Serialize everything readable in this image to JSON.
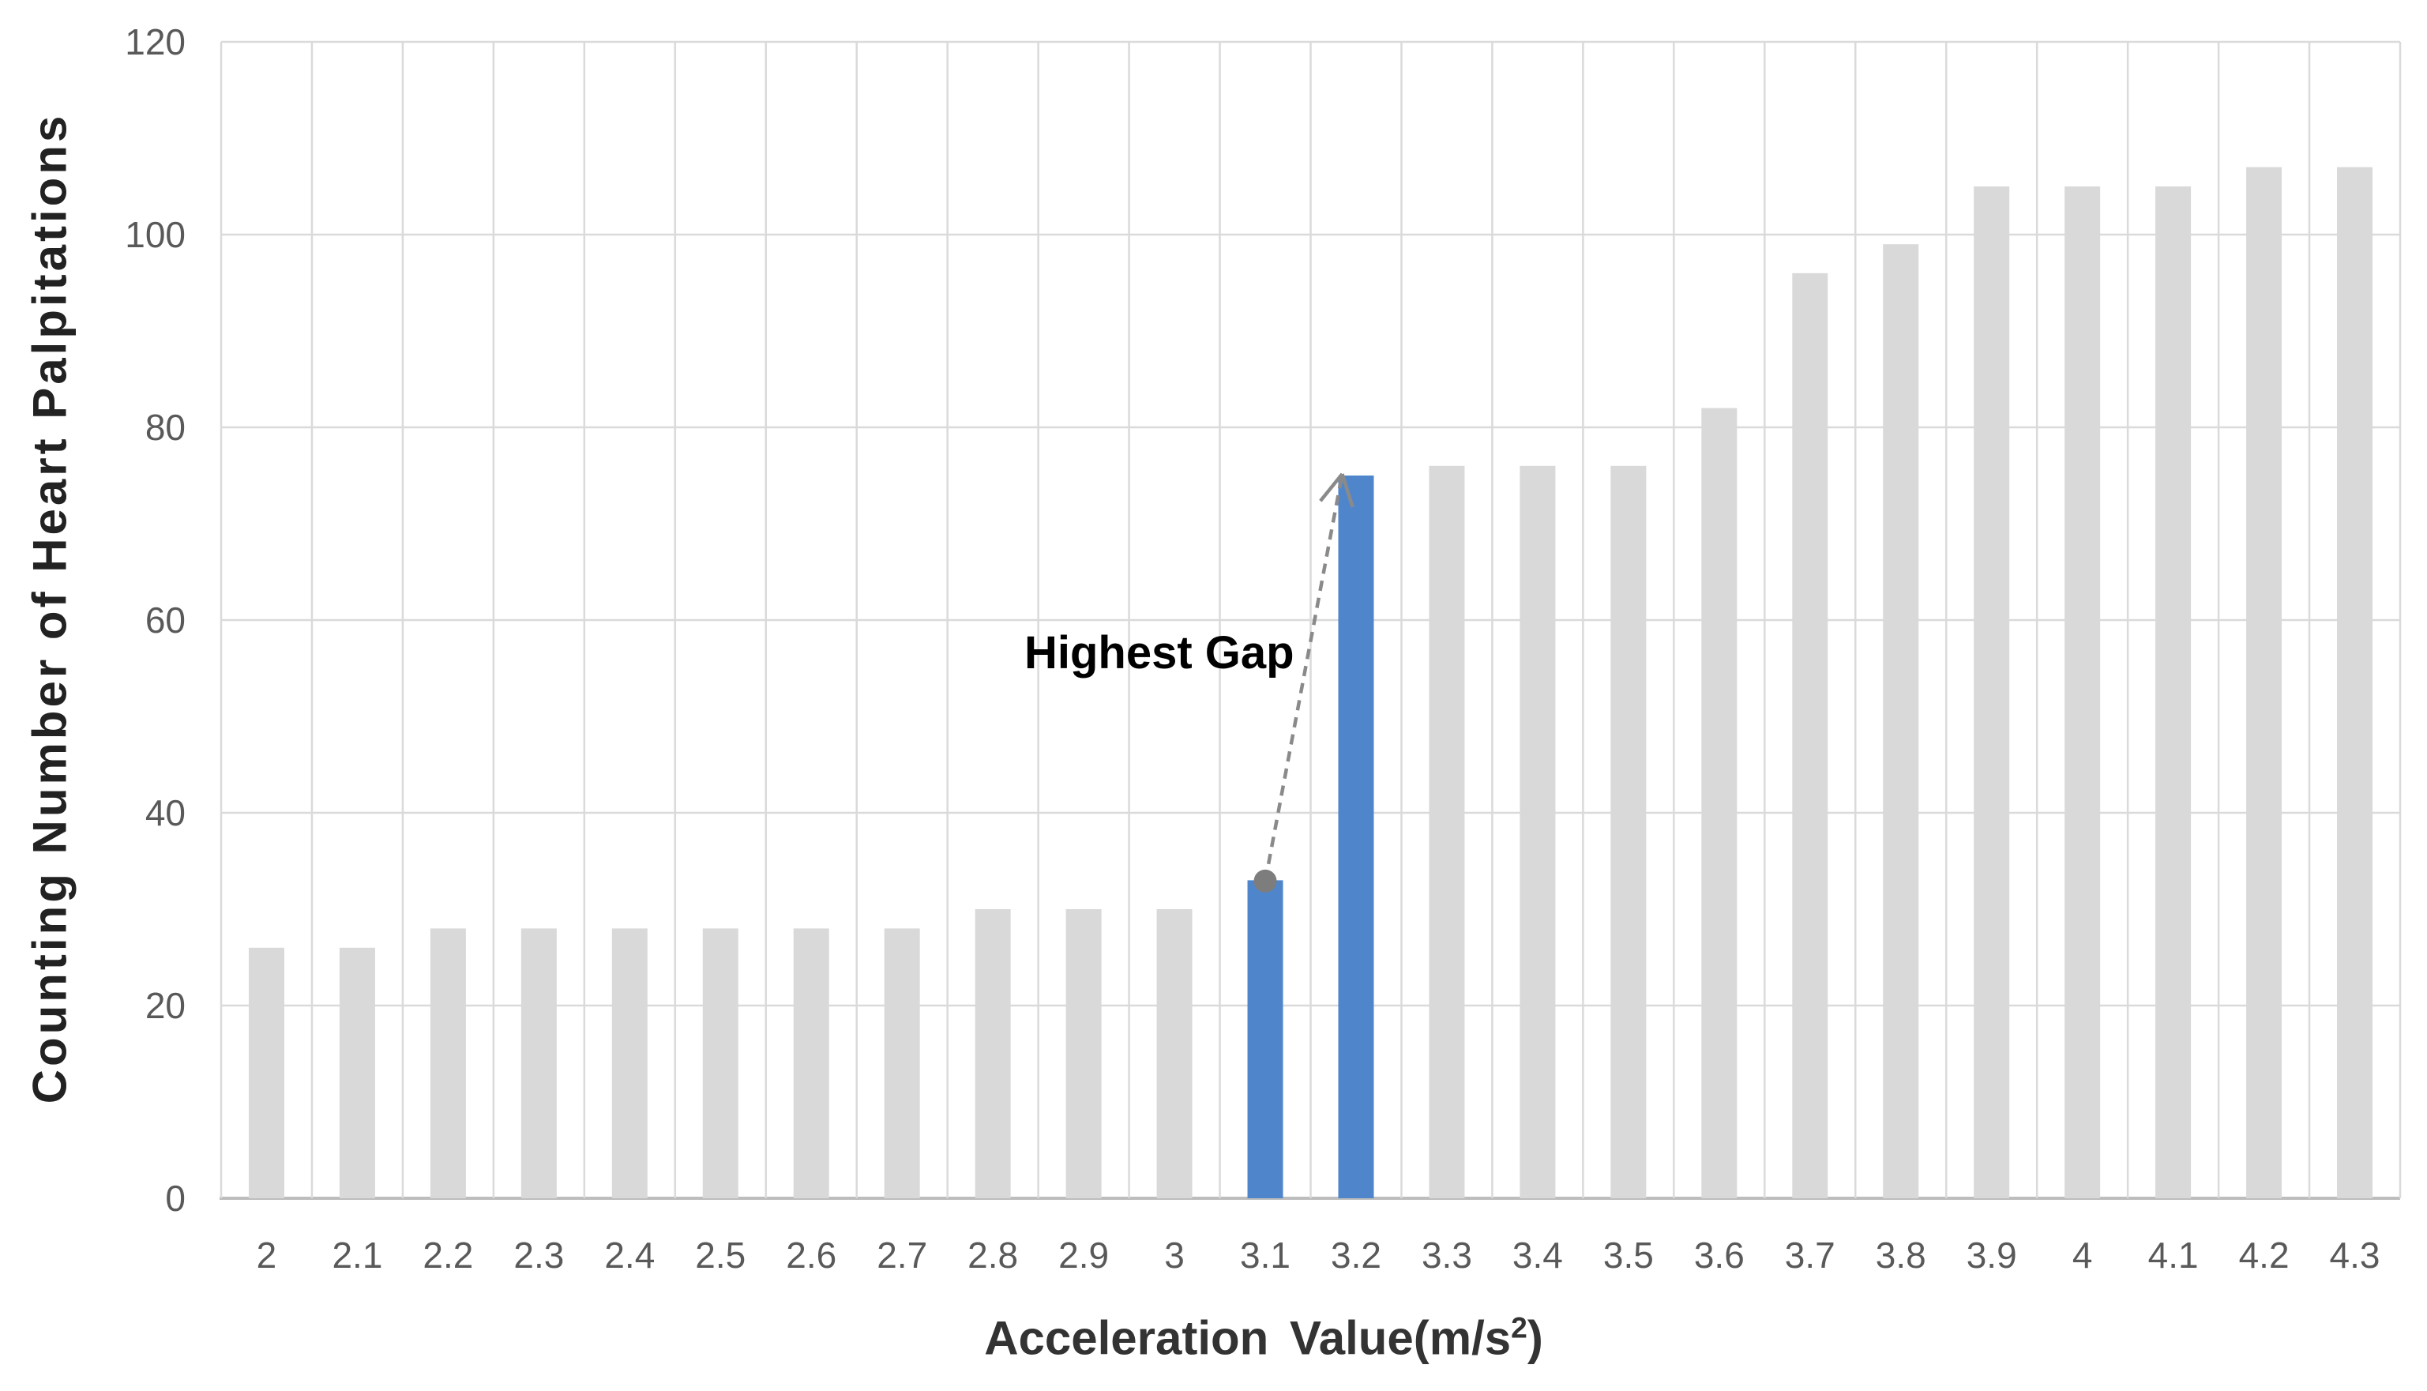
{
  "chart_data": {
    "type": "bar",
    "title": "",
    "categories": [
      "2",
      "2.1",
      "2.2",
      "2.3",
      "2.4",
      "2.5",
      "2.6",
      "2.7",
      "2.8",
      "2.9",
      "3",
      "3.1",
      "3.2",
      "3.3",
      "3.4",
      "3.5",
      "3.6",
      "3.7",
      "3.8",
      "3.9",
      "4",
      "4.1",
      "4.2",
      "4.3"
    ],
    "values": [
      26,
      26,
      28,
      28,
      28,
      28,
      28,
      28,
      30,
      30,
      30,
      33,
      75,
      76,
      76,
      76,
      82,
      96,
      99,
      105,
      105,
      105,
      107,
      107
    ],
    "highlighted_categories": [
      "3.1",
      "3.2"
    ],
    "ylabel": "Counting Number of Heart Palpitations",
    "xlabel": "Acceleration Value(m/s²)",
    "xlabel_main": "Acceleration Value(m/s",
    "xlabel_sup": "2",
    "xlabel_end": ")",
    "ylim": [
      0,
      120
    ],
    "ytick_interval": 20,
    "ytick_labels": [
      "0",
      "20",
      "40",
      "60",
      "80",
      "100",
      "120"
    ],
    "grid": true,
    "legend": "none",
    "annotation": {
      "label": "Highest Gap",
      "from_category": "3.1",
      "to_category": "3.2",
      "marker": "dot-at-source",
      "arrow_style": "dashed"
    },
    "colors": {
      "background": "#ffffff",
      "bar_default": "#d9d9d9",
      "bar_highlight": "#4f86cb",
      "gridline": "#dadada",
      "axis_line": "#bdbdbd",
      "tick_text": "#595959",
      "axis_title_text": "#2b2b2b",
      "annotation_text": "#000000",
      "arrow": "#8a8a8a",
      "marker_dot": "#7d7d7d"
    }
  }
}
